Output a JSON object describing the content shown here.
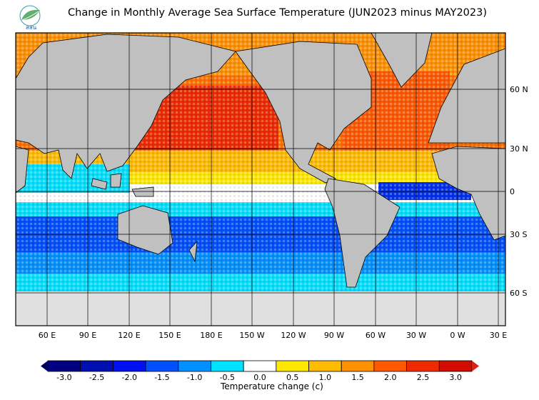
{
  "title": "Change in Monthly Average Sea Surface Temperature (JUN2023 minus MAY2023)",
  "logo": {
    "text": "สสน",
    "icon": "leaf-logo-icon"
  },
  "lat_labels": [
    "60 N",
    "30 N",
    "0",
    "30 S",
    "60 S"
  ],
  "lon_labels": [
    "60 E",
    "90 E",
    "120 E",
    "150 E",
    "180 E",
    "150 W",
    "120 W",
    "90 W",
    "60 W",
    "30 W",
    "0 W",
    "30 E"
  ],
  "colorbar": {
    "title": "Temperature change  (c)",
    "ticks": [
      "-3.0",
      "-2.5",
      "-2.0",
      "-1.5",
      "-1.0",
      "-0.5",
      "0.0",
      "0.5",
      "1.0",
      "1.5",
      "2.0",
      "2.5",
      "3.0"
    ],
    "colors": [
      "#000080",
      "#0010b0",
      "#0010f0",
      "#0050ff",
      "#0090ff",
      "#00e0ff",
      "#ffffff",
      "#ffe800",
      "#ffbb00",
      "#ff9000",
      "#ff5800",
      "#f02a00",
      "#d00d00"
    ]
  },
  "colors": {
    "land": "#c0c0c0",
    "ice": "#e0e0e0"
  }
}
